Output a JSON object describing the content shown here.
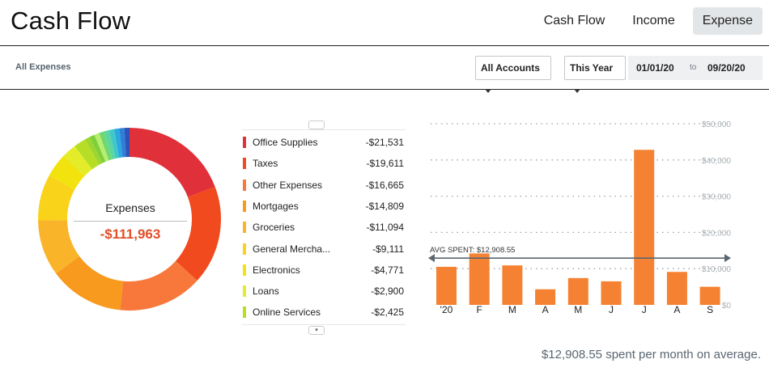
{
  "header": {
    "title": "Cash Flow",
    "tabs": [
      {
        "label": "Cash Flow",
        "active": false
      },
      {
        "label": "Income",
        "active": false
      },
      {
        "label": "Expense",
        "active": true
      }
    ]
  },
  "filters": {
    "breadcrumb": "All Expenses",
    "account_select": "All Accounts",
    "period_select": "This Year",
    "date_from": "01/01/20",
    "date_to_label": "to",
    "date_to": "09/20/20"
  },
  "summary": {
    "label": "Expenses",
    "total": "-$111,963"
  },
  "categories": [
    {
      "name": "Office Supplies",
      "amount": "-$21,531",
      "value": 21531,
      "color": "#e0303a"
    },
    {
      "name": "Taxes",
      "amount": "-$19,611",
      "value": 19611,
      "color": "#f04a1e"
    },
    {
      "name": "Other Expenses",
      "amount": "-$16,665",
      "value": 16665,
      "color": "#f7783a"
    },
    {
      "name": "Mortgages",
      "amount": "-$14,809",
      "value": 14809,
      "color": "#f79a1e"
    },
    {
      "name": "Groceries",
      "amount": "-$11,094",
      "value": 11094,
      "color": "#f9b42a"
    },
    {
      "name": "General Mercha...",
      "amount": "-$9,111",
      "value": 9111,
      "color": "#f9d21a"
    },
    {
      "name": "Electronics",
      "amount": "-$4,771",
      "value": 4771,
      "color": "#f2e30e"
    },
    {
      "name": "Loans",
      "amount": "-$2,900",
      "value": 2900,
      "color": "#e4ec2a"
    },
    {
      "name": "Online Services",
      "amount": "-$2,425",
      "value": 2425,
      "color": "#b6de26"
    }
  ],
  "donut_tail_colors": [
    "#9ed630",
    "#7fcf3c",
    "#b8ee6e",
    "#6fd870",
    "#5cd6a0",
    "#40c8c8",
    "#2aa8e0",
    "#2f7fd8",
    "#2e52b8"
  ],
  "donut_tail_total": 9047,
  "scroll": {
    "up_icon": "chevron-up-icon",
    "down_icon": "chevron-down-icon",
    "down_glyph": "▾"
  },
  "chart_data": {
    "type": "bar",
    "categories": [
      "'20",
      "F",
      "M",
      "A",
      "M",
      "J",
      "J",
      "A",
      "S"
    ],
    "values": [
      10500,
      14200,
      10900,
      4300,
      7400,
      6500,
      42800,
      9100,
      5000
    ],
    "y_ticks": [
      "$0",
      "$10,000",
      "$20,000",
      "$30,000",
      "$40,000",
      "$50,000"
    ],
    "y_tick_values": [
      0,
      10000,
      20000,
      30000,
      40000,
      50000
    ],
    "ylim": [
      0,
      50000
    ],
    "average": 12908.55,
    "average_label": "AVG SPENT: $12,908.55",
    "bar_color": "#f58232",
    "grid": "dotted horizontal",
    "ytick_side": "right"
  },
  "footer": {
    "note": "$12,908.55 spent per month on average."
  }
}
